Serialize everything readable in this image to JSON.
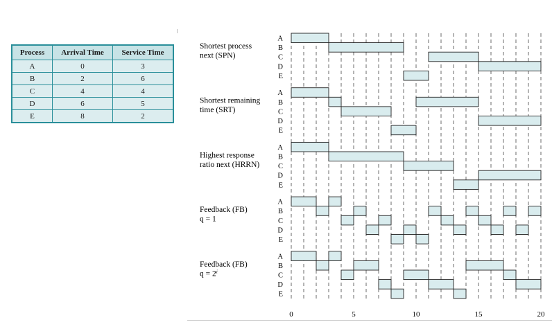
{
  "table": {
    "headers": [
      "Process",
      "Arrival Time",
      "Service Time"
    ],
    "rows": [
      [
        "A",
        "0",
        "3"
      ],
      [
        "B",
        "2",
        "6"
      ],
      [
        "C",
        "4",
        "4"
      ],
      [
        "D",
        "6",
        "5"
      ],
      [
        "E",
        "8",
        "2"
      ]
    ]
  },
  "colors": {
    "table_border": "#2a8f9a",
    "table_header_bg": "#c7e3e6",
    "table_cell_bg": "#dcedef",
    "bar_fill": "#d9ecee"
  },
  "chart_data": {
    "type": "gantt",
    "x_ticks": [
      0,
      5,
      10,
      15,
      20
    ],
    "x_range": [
      0,
      20
    ],
    "processes": [
      "A",
      "B",
      "C",
      "D",
      "E"
    ],
    "grid": "dashed vertical line at every time unit",
    "schedules": [
      {
        "title_lines": [
          "Shortest process",
          "next (SPN)"
        ],
        "segments": [
          {
            "p": "A",
            "start": 0,
            "end": 3
          },
          {
            "p": "B",
            "start": 3,
            "end": 9
          },
          {
            "p": "E",
            "start": 9,
            "end": 11
          },
          {
            "p": "C",
            "start": 11,
            "end": 15
          },
          {
            "p": "D",
            "start": 15,
            "end": 20
          }
        ]
      },
      {
        "title_lines": [
          "Shortest remaining",
          "time (SRT)"
        ],
        "segments": [
          {
            "p": "A",
            "start": 0,
            "end": 3
          },
          {
            "p": "B",
            "start": 3,
            "end": 4
          },
          {
            "p": "C",
            "start": 4,
            "end": 8
          },
          {
            "p": "E",
            "start": 8,
            "end": 10
          },
          {
            "p": "B",
            "start": 10,
            "end": 15
          },
          {
            "p": "D",
            "start": 15,
            "end": 20
          }
        ]
      },
      {
        "title_lines": [
          "Highest response",
          "ratio next (HRRN)"
        ],
        "segments": [
          {
            "p": "A",
            "start": 0,
            "end": 3
          },
          {
            "p": "B",
            "start": 3,
            "end": 9
          },
          {
            "p": "C",
            "start": 9,
            "end": 13
          },
          {
            "p": "E",
            "start": 13,
            "end": 15
          },
          {
            "p": "D",
            "start": 15,
            "end": 20
          }
        ]
      },
      {
        "title_lines": [
          "Feedback (FB)",
          "q = 1"
        ],
        "segments": [
          {
            "p": "A",
            "start": 0,
            "end": 2
          },
          {
            "p": "B",
            "start": 2,
            "end": 3
          },
          {
            "p": "A",
            "start": 3,
            "end": 4
          },
          {
            "p": "C",
            "start": 4,
            "end": 5
          },
          {
            "p": "B",
            "start": 5,
            "end": 6
          },
          {
            "p": "D",
            "start": 6,
            "end": 7
          },
          {
            "p": "C",
            "start": 7,
            "end": 8
          },
          {
            "p": "E",
            "start": 8,
            "end": 9
          },
          {
            "p": "D",
            "start": 9,
            "end": 10
          },
          {
            "p": "E",
            "start": 10,
            "end": 11
          },
          {
            "p": "B",
            "start": 11,
            "end": 12
          },
          {
            "p": "C",
            "start": 12,
            "end": 13
          },
          {
            "p": "D",
            "start": 13,
            "end": 14
          },
          {
            "p": "B",
            "start": 14,
            "end": 15
          },
          {
            "p": "C",
            "start": 15,
            "end": 16
          },
          {
            "p": "D",
            "start": 16,
            "end": 17
          },
          {
            "p": "B",
            "start": 17,
            "end": 18
          },
          {
            "p": "D",
            "start": 18,
            "end": 19
          },
          {
            "p": "B",
            "start": 19,
            "end": 20
          }
        ]
      },
      {
        "title_lines": [
          "Feedback (FB)",
          "q = 2i"
        ],
        "segments": [
          {
            "p": "A",
            "start": 0,
            "end": 2
          },
          {
            "p": "B",
            "start": 2,
            "end": 3
          },
          {
            "p": "A",
            "start": 3,
            "end": 4
          },
          {
            "p": "C",
            "start": 4,
            "end": 5
          },
          {
            "p": "B",
            "start": 5,
            "end": 7
          },
          {
            "p": "D",
            "start": 7,
            "end": 8
          },
          {
            "p": "E",
            "start": 8,
            "end": 9
          },
          {
            "p": "C",
            "start": 9,
            "end": 11
          },
          {
            "p": "D",
            "start": 11,
            "end": 13
          },
          {
            "p": "E",
            "start": 13,
            "end": 14
          },
          {
            "p": "B",
            "start": 14,
            "end": 17
          },
          {
            "p": "C",
            "start": 17,
            "end": 18
          },
          {
            "p": "D",
            "start": 18,
            "end": 20
          }
        ]
      }
    ]
  }
}
